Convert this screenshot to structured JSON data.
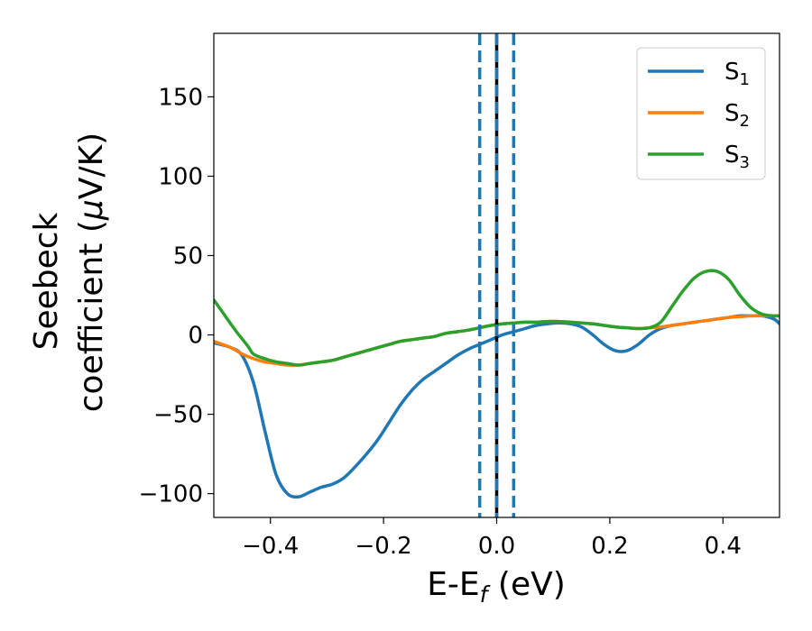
{
  "chart_data": {
    "type": "line",
    "xlabel": {
      "main": "E-E",
      "sub": "f",
      "rest": " (eV)"
    },
    "ylabel": {
      "line1": "Seebeck",
      "line2_prefix": "coefficient  (",
      "mu": "μ",
      "line2_suffix": "V/K)"
    },
    "xlim": [
      -0.5,
      0.5
    ],
    "ylim": [
      -115,
      190
    ],
    "xticks": [
      -0.4,
      -0.2,
      0.0,
      0.2,
      0.4
    ],
    "xtick_labels": [
      "−0.4",
      "−0.2",
      "0.0",
      "0.2",
      "0.4"
    ],
    "yticks": [
      -100,
      -50,
      0,
      50,
      100,
      150
    ],
    "ytick_labels": [
      "−100",
      "−50",
      "0",
      "50",
      "100",
      "150"
    ],
    "grid": false,
    "legend_position": "top-right",
    "vlines": [
      {
        "x": 0.0,
        "style": "solid",
        "color": "#000000"
      },
      {
        "x": -0.03,
        "style": "dashed",
        "color": "#1f77b4"
      },
      {
        "x": 0.0,
        "style": "dashed",
        "color": "#1f77b4"
      },
      {
        "x": 0.03,
        "style": "dashed",
        "color": "#1f77b4"
      }
    ],
    "series": [
      {
        "name": "S",
        "sub": "1",
        "color": "#1f77b4",
        "x": [
          -0.5,
          -0.47,
          -0.45,
          -0.43,
          -0.41,
          -0.39,
          -0.37,
          -0.35,
          -0.33,
          -0.31,
          -0.29,
          -0.27,
          -0.25,
          -0.23,
          -0.21,
          -0.19,
          -0.17,
          -0.15,
          -0.13,
          -0.11,
          -0.09,
          -0.07,
          -0.05,
          -0.03,
          -0.01,
          0.01,
          0.03,
          0.05,
          0.07,
          0.09,
          0.11,
          0.13,
          0.15,
          0.17,
          0.19,
          0.21,
          0.23,
          0.25,
          0.27,
          0.29,
          0.31,
          0.33,
          0.35,
          0.37,
          0.39,
          0.41,
          0.43,
          0.45,
          0.47,
          0.49,
          0.5
        ],
        "y": [
          -5,
          -8,
          -13,
          -30,
          -60,
          -88,
          -100,
          -102,
          -99,
          -96,
          -94,
          -90,
          -83,
          -75,
          -66,
          -55,
          -44,
          -35,
          -28,
          -23,
          -18,
          -13,
          -9,
          -6,
          -3,
          0,
          2,
          4,
          6,
          7,
          7.5,
          7,
          5,
          0,
          -6,
          -10,
          -10,
          -6,
          0,
          4,
          6,
          7,
          8,
          9,
          10,
          11,
          12,
          12,
          12,
          10,
          7
        ]
      },
      {
        "name": "S",
        "sub": "2",
        "color": "#ff7f0e",
        "x": [
          -0.5,
          -0.47,
          -0.45,
          -0.43,
          -0.41,
          -0.39,
          -0.37,
          -0.35,
          -0.33,
          -0.31,
          -0.29,
          -0.27,
          -0.25,
          -0.23,
          -0.21,
          -0.19,
          -0.17,
          -0.15,
          -0.13,
          -0.11,
          -0.09,
          -0.07,
          -0.05,
          -0.03,
          -0.01,
          0.01,
          0.03,
          0.05,
          0.07,
          0.09,
          0.11,
          0.13,
          0.15,
          0.17,
          0.19,
          0.21,
          0.23,
          0.25,
          0.27,
          0.29,
          0.31,
          0.33,
          0.35,
          0.37,
          0.39,
          0.41,
          0.43,
          0.45,
          0.47,
          0.49,
          0.5
        ],
        "y": [
          -4,
          -8,
          -12,
          -15,
          -17,
          -18,
          -19,
          -19,
          -18,
          -17,
          -16,
          -14,
          -12,
          -10,
          -8,
          -6,
          -4,
          -3,
          -2,
          -1,
          1,
          2,
          3,
          4.5,
          6,
          7,
          7.5,
          8,
          8,
          8.5,
          8.5,
          8,
          7.5,
          7,
          6,
          5,
          4.5,
          4,
          4.5,
          5,
          6,
          7,
          8,
          9,
          10,
          11,
          11.5,
          12,
          12,
          12,
          12
        ]
      },
      {
        "name": "S",
        "sub": "3",
        "color": "#2ca02c",
        "x": [
          -0.5,
          -0.48,
          -0.46,
          -0.44,
          -0.43,
          -0.41,
          -0.39,
          -0.37,
          -0.35,
          -0.33,
          -0.31,
          -0.29,
          -0.27,
          -0.25,
          -0.23,
          -0.21,
          -0.19,
          -0.17,
          -0.15,
          -0.13,
          -0.11,
          -0.09,
          -0.07,
          -0.05,
          -0.03,
          -0.01,
          0.01,
          0.03,
          0.05,
          0.07,
          0.09,
          0.11,
          0.13,
          0.15,
          0.17,
          0.19,
          0.21,
          0.23,
          0.25,
          0.27,
          0.29,
          0.31,
          0.33,
          0.35,
          0.37,
          0.39,
          0.41,
          0.43,
          0.45,
          0.47,
          0.49,
          0.5
        ],
        "y": [
          22,
          12,
          2,
          -7,
          -12,
          -15,
          -17,
          -18,
          -19,
          -18,
          -17,
          -16,
          -14,
          -12,
          -10,
          -8,
          -6,
          -4,
          -3,
          -2,
          -1,
          1,
          2,
          3,
          4.5,
          6,
          7,
          7.5,
          8,
          8,
          8.5,
          8.5,
          8,
          7.5,
          7,
          6,
          5,
          4.5,
          4,
          4.5,
          8,
          18,
          28,
          36,
          40,
          40,
          35,
          25,
          17,
          13,
          12,
          12
        ]
      }
    ]
  }
}
